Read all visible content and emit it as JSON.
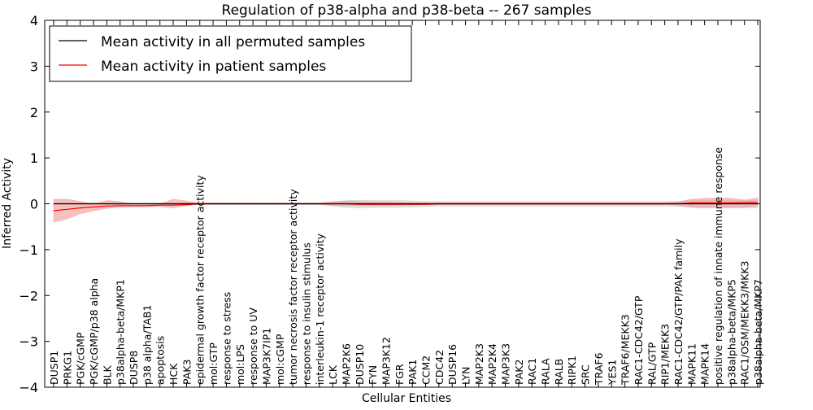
{
  "chart_data": {
    "type": "line",
    "title": "Regulation of p38-alpha and p38-beta -- 267 samples",
    "xlabel": "Cellular Entities",
    "ylabel": "Inferred Activity",
    "ylim": [
      -4,
      4
    ],
    "yticks": [
      "−4",
      "−3",
      "−2",
      "−1",
      "0",
      "1",
      "2",
      "3",
      "4"
    ],
    "ytick_values": [
      -4,
      -3,
      -2,
      -1,
      0,
      1,
      2,
      3,
      4
    ],
    "legend_position": "top-left",
    "categories": [
      "DUSP1",
      "PRKG1",
      "PGK/cGMP",
      "PGK/cGMP/p38 alpha",
      "BLK",
      "p38alpha-beta/MKP1",
      "DUSP8",
      "p38 alpha/TAB1",
      "apoptosis",
      "HCK",
      "PAK3",
      "epidermal growth factor receptor activity",
      "mol:GTP",
      "response to stress",
      "mol:LPS",
      "response to UV",
      "MAP3K7IP1",
      "mol:cGMP",
      "tumor necrosis factor receptor activity",
      "response to insulin stimulus",
      "interleukin-1 receptor activity",
      "LCK",
      "MAP2K6",
      "DUSP10",
      "FYN",
      "MAP3K12",
      "FGR",
      "PAK1",
      "CCM2",
      "CDC42",
      "DUSP16",
      "LYN",
      "MAP2K3",
      "MAP2K4",
      "MAP3K3",
      "PAK2",
      "RAC1",
      "RALA",
      "RALB",
      "RIPK1",
      "SRC",
      "TRAF6",
      "YES1",
      "TRAF6/MEKK3",
      "RAC1-CDC42/GTP",
      "RAL/GTP",
      "RIP1/MEKK3",
      "RAC1-CDC42/GTP/PAK family",
      "MAPK11",
      "MAPK14",
      "positive regulation of innate immune response",
      "p38alpha-beta/MKP5",
      "RAC1/OSM/MEKK3/MKK3",
      "p38alpha-beta/MKP7"
    ],
    "series": [
      {
        "name": "Mean activity in all permuted samples",
        "color": "#000000",
        "band_color": "#cccccc",
        "values": [
          0,
          0,
          0,
          0,
          0,
          0,
          0,
          0,
          0,
          0,
          0,
          0,
          0,
          0,
          0,
          0,
          0,
          0,
          0,
          0,
          0,
          0,
          0,
          0,
          0,
          0,
          0,
          0,
          0,
          0,
          0,
          0,
          0,
          0,
          0,
          0,
          0,
          0,
          0,
          0,
          0,
          0,
          0,
          0,
          0,
          0,
          0,
          0,
          0,
          0,
          0,
          0,
          0,
          0
        ],
        "lower": [
          -0.02,
          -0.02,
          -0.02,
          -0.02,
          -0.02,
          -0.02,
          -0.02,
          -0.02,
          -0.02,
          -0.02,
          -0.02,
          -0.02,
          -0.02,
          -0.02,
          -0.02,
          -0.02,
          -0.02,
          -0.02,
          -0.02,
          -0.02,
          -0.02,
          -0.05,
          -0.08,
          -0.09,
          -0.08,
          -0.08,
          -0.08,
          -0.07,
          -0.06,
          -0.05,
          -0.05,
          -0.05,
          -0.05,
          -0.05,
          -0.05,
          -0.05,
          -0.05,
          -0.05,
          -0.05,
          -0.05,
          -0.05,
          -0.05,
          -0.05,
          -0.05,
          -0.05,
          -0.05,
          -0.05,
          -0.05,
          -0.08,
          -0.09,
          -0.09,
          -0.09,
          -0.08,
          -0.09
        ],
        "upper": [
          0.02,
          0.02,
          0.02,
          0.02,
          0.02,
          0.02,
          0.02,
          0.02,
          0.02,
          0.02,
          0.02,
          0.02,
          0.02,
          0.02,
          0.02,
          0.02,
          0.02,
          0.02,
          0.02,
          0.02,
          0.02,
          0.05,
          0.07,
          0.08,
          0.07,
          0.07,
          0.07,
          0.06,
          0.05,
          0.05,
          0.05,
          0.05,
          0.05,
          0.05,
          0.05,
          0.05,
          0.05,
          0.05,
          0.05,
          0.05,
          0.05,
          0.05,
          0.05,
          0.05,
          0.05,
          0.05,
          0.05,
          0.05,
          0.07,
          0.08,
          0.08,
          0.08,
          0.07,
          0.08
        ]
      },
      {
        "name": "Mean activity in patient samples",
        "color": "#ff0000",
        "band_color": "#f4a0a0",
        "values": [
          -0.15,
          -0.12,
          -0.09,
          -0.07,
          -0.05,
          -0.04,
          -0.04,
          -0.04,
          -0.03,
          -0.03,
          -0.02,
          0,
          0,
          0,
          0,
          0,
          0,
          0,
          0,
          0,
          0,
          0,
          0,
          -0.01,
          -0.01,
          -0.01,
          -0.01,
          -0.01,
          -0.01,
          0,
          0,
          0,
          0,
          0,
          0,
          0,
          0,
          0,
          0,
          0,
          0,
          0,
          0,
          0,
          0,
          0,
          0,
          0,
          0.02,
          0.02,
          0.02,
          0.02,
          0.03,
          0.03
        ],
        "lower": [
          -0.4,
          -0.33,
          -0.22,
          -0.15,
          -0.1,
          -0.08,
          -0.07,
          -0.07,
          -0.06,
          -0.09,
          -0.04,
          -0.01,
          -0.01,
          -0.01,
          -0.01,
          -0.01,
          -0.01,
          -0.01,
          -0.01,
          -0.01,
          -0.01,
          -0.03,
          -0.04,
          -0.04,
          -0.04,
          -0.04,
          -0.03,
          -0.03,
          -0.02,
          -0.02,
          -0.02,
          -0.02,
          -0.02,
          -0.02,
          -0.02,
          -0.02,
          -0.02,
          -0.02,
          -0.02,
          -0.02,
          -0.02,
          -0.02,
          -0.02,
          -0.02,
          -0.02,
          -0.02,
          -0.02,
          -0.03,
          -0.07,
          -0.08,
          -0.07,
          -0.08,
          -0.09,
          -0.04
        ],
        "upper": [
          0.1,
          0.1,
          0.05,
          0.0,
          0.07,
          0.05,
          0.0,
          -0.01,
          0.0,
          0.1,
          0.06,
          0.01,
          0.01,
          0.01,
          0.01,
          0.01,
          0.01,
          0.01,
          0.01,
          0.01,
          0.01,
          0.04,
          0.06,
          0.04,
          0.04,
          0.04,
          0.03,
          0.02,
          0.02,
          0.02,
          0.02,
          0.02,
          0.02,
          0.02,
          0.02,
          0.02,
          0.02,
          0.02,
          0.02,
          0.02,
          0.02,
          0.02,
          0.02,
          0.02,
          0.02,
          0.02,
          0.02,
          0.04,
          0.1,
          0.12,
          0.13,
          0.12,
          0.08,
          0.13
        ]
      }
    ]
  }
}
